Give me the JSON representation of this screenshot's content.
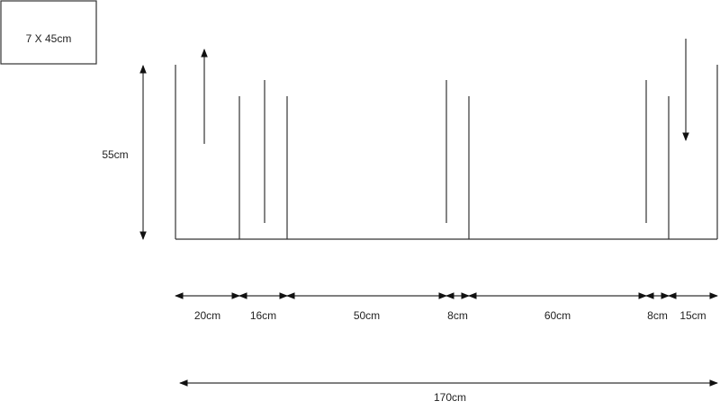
{
  "box_label": "7 X 45cm",
  "height_label": "55cm",
  "segments": [
    {
      "label": "20cm"
    },
    {
      "label": "16cm"
    },
    {
      "label": "50cm"
    },
    {
      "label": "8cm"
    },
    {
      "label": "60cm"
    },
    {
      "label": "8cm"
    },
    {
      "label": "15cm"
    }
  ],
  "total_label": "170cm"
}
